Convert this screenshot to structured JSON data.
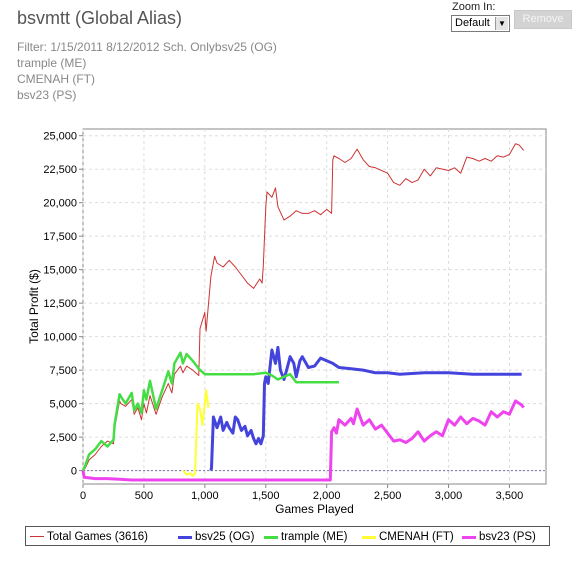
{
  "header": {
    "title": "bsvmtt (Global Alias)",
    "filter_lines": [
      "Filter: 1/15/2011 8/12/2012 Sch. Onlybsv25 (OG)",
      "trample (ME)",
      "CMENAH (FT)",
      "bsv23 (PS)"
    ]
  },
  "zoom": {
    "label": "Zoom In:",
    "selected": "Default",
    "remove_label": "Remove"
  },
  "chart_data": {
    "type": "line",
    "xlabel": "Games Played",
    "ylabel": "Total Profit ($)",
    "xlim": [
      0,
      3800
    ],
    "ylim": [
      -1000,
      25500
    ],
    "xticks": [
      0,
      500,
      1000,
      1500,
      2000,
      2500,
      3000,
      3500
    ],
    "xtick_labels": [
      "0",
      "500",
      "1,000",
      "1,500",
      "2,000",
      "2,500",
      "3,000",
      "3,500"
    ],
    "yticks": [
      0,
      2500,
      5000,
      7500,
      10000,
      12500,
      15000,
      17500,
      20000,
      22500,
      25000
    ],
    "ytick_labels": [
      "0",
      "2,500",
      "5,000",
      "7,500",
      "10,000",
      "12,500",
      "15,000",
      "17,500",
      "20,000",
      "22,500",
      "25,000"
    ],
    "grid": true,
    "zero_line": true,
    "legend_position": "bottom",
    "series": [
      {
        "name": "Total Games (3616)",
        "color": "#cc3333",
        "x": [
          0,
          20,
          50,
          100,
          150,
          200,
          250,
          260,
          300,
          310,
          350,
          400,
          420,
          450,
          480,
          500,
          520,
          550,
          600,
          650,
          700,
          730,
          750,
          800,
          820,
          850,
          900,
          950,
          960,
          1000,
          1010,
          1050,
          1080,
          1100,
          1150,
          1200,
          1250,
          1300,
          1350,
          1400,
          1450,
          1470,
          1480,
          1500,
          1510,
          1550,
          1580,
          1600,
          1650,
          1700,
          1750,
          1800,
          1850,
          1900,
          1950,
          2000,
          2040,
          2050,
          2060,
          2100,
          2150,
          2200,
          2250,
          2300,
          2350,
          2400,
          2500,
          2550,
          2600,
          2650,
          2700,
          2750,
          2800,
          2850,
          2900,
          3000,
          3050,
          3100,
          3150,
          3200,
          3250,
          3300,
          3350,
          3400,
          3450,
          3500,
          3550,
          3580,
          3600,
          3616
        ],
        "y": [
          0,
          200,
          800,
          1200,
          1800,
          2200,
          2000,
          3200,
          5200,
          5000,
          4800,
          5300,
          4200,
          4700,
          3800,
          5000,
          4300,
          5600,
          4200,
          5500,
          6500,
          5800,
          7200,
          7800,
          7300,
          7800,
          7500,
          7100,
          10600,
          11800,
          10400,
          14500,
          16000,
          15500,
          15200,
          15700,
          15200,
          14600,
          14000,
          13600,
          14300,
          14000,
          15300,
          19700,
          20800,
          20400,
          21100,
          19700,
          18700,
          19000,
          19400,
          19200,
          19200,
          19400,
          19100,
          19500,
          19200,
          23200,
          23500,
          23300,
          23000,
          23300,
          24000,
          23200,
          22700,
          22600,
          22200,
          21500,
          21300,
          21800,
          21500,
          21700,
          22500,
          22000,
          22600,
          22400,
          22600,
          22200,
          23400,
          23300,
          23100,
          23300,
          23100,
          23500,
          23400,
          23600,
          24400,
          24300,
          24100,
          23900
        ]
      },
      {
        "name": "bsv25 (OG)",
        "color": "#4444dd",
        "x": [
          1050,
          1055,
          1070,
          1100,
          1130,
          1150,
          1180,
          1200,
          1230,
          1250,
          1270,
          1300,
          1330,
          1350,
          1380,
          1400,
          1420,
          1440,
          1460,
          1480,
          1490,
          1500,
          1520,
          1550,
          1580,
          1600,
          1620,
          1650,
          1680,
          1700,
          1730,
          1750,
          1780,
          1800,
          1850,
          1900,
          1950,
          2000,
          2050,
          2100,
          2200,
          2300,
          2400,
          2500,
          2600,
          2800,
          3000,
          3200,
          3400,
          3600
        ],
        "y": [
          0,
          200,
          4000,
          3200,
          4000,
          3000,
          3600,
          3200,
          2800,
          4000,
          3800,
          3000,
          3300,
          2600,
          3000,
          2400,
          2000,
          2400,
          2000,
          2600,
          6500,
          7000,
          6500,
          9000,
          8000,
          9200,
          7500,
          6800,
          7800,
          8500,
          8000,
          7000,
          8200,
          8500,
          7700,
          7800,
          8400,
          8200,
          8000,
          7700,
          7600,
          7500,
          7300,
          7300,
          7200,
          7300,
          7300,
          7200,
          7200,
          7200
        ]
      },
      {
        "name": "trample (ME)",
        "color": "#44dd44",
        "x": [
          0,
          20,
          50,
          100,
          150,
          200,
          250,
          260,
          300,
          320,
          350,
          400,
          420,
          450,
          480,
          500,
          520,
          550,
          600,
          650,
          700,
          730,
          750,
          800,
          820,
          850,
          900,
          950,
          1000,
          1050,
          1100,
          1200,
          1300,
          1400,
          1500,
          1550,
          1600,
          1700,
          1750,
          1800,
          1900,
          2000,
          2100
        ],
        "y": [
          0,
          400,
          1200,
          1600,
          2200,
          1800,
          2300,
          3500,
          5700,
          5400,
          5000,
          5800,
          4500,
          5000,
          4300,
          6000,
          5300,
          6700,
          4600,
          6000,
          7400,
          6500,
          8000,
          8800,
          8000,
          8700,
          8200,
          7600,
          7200,
          7200,
          7200,
          7200,
          7200,
          7200,
          7300,
          7100,
          6800,
          7200,
          6600,
          6600,
          6600,
          6600,
          6600
        ]
      },
      {
        "name": "CMENAH (FT)",
        "color": "#ffff33",
        "x": [
          820,
          830,
          850,
          880,
          900,
          920,
          940,
          960,
          980,
          1000,
          1010,
          1030
        ],
        "y": [
          0,
          -100,
          -300,
          -200,
          -400,
          -200,
          5000,
          4600,
          3400,
          5000,
          6000,
          4700
        ]
      },
      {
        "name": "bsv23 (PS)",
        "color": "#ee44ee",
        "x": [
          0,
          10,
          100,
          200,
          300,
          400,
          500,
          600,
          700,
          800,
          900,
          1000,
          1100,
          1200,
          1300,
          1400,
          1500,
          1600,
          1700,
          1800,
          1900,
          2000,
          2030,
          2040,
          2060,
          2080,
          2100,
          2150,
          2200,
          2220,
          2250,
          2300,
          2350,
          2400,
          2450,
          2500,
          2550,
          2600,
          2650,
          2700,
          2750,
          2800,
          2850,
          2900,
          2950,
          3000,
          3050,
          3100,
          3150,
          3200,
          3250,
          3300,
          3350,
          3400,
          3450,
          3500,
          3550,
          3600,
          3616
        ],
        "y": [
          0,
          -500,
          -600,
          -600,
          -650,
          -700,
          -700,
          -700,
          -700,
          -700,
          -700,
          -700,
          -700,
          -700,
          -700,
          -700,
          -700,
          -700,
          -700,
          -700,
          -700,
          -700,
          -700,
          2900,
          3200,
          2800,
          3800,
          3400,
          3900,
          3500,
          4600,
          3400,
          3800,
          3100,
          3400,
          2800,
          2200,
          2300,
          2100,
          2400,
          2900,
          2200,
          2600,
          2900,
          2600,
          3800,
          3400,
          4000,
          3500,
          3900,
          3700,
          3400,
          4400,
          4000,
          4400,
          4200,
          5200,
          4900,
          4700
        ]
      }
    ]
  }
}
